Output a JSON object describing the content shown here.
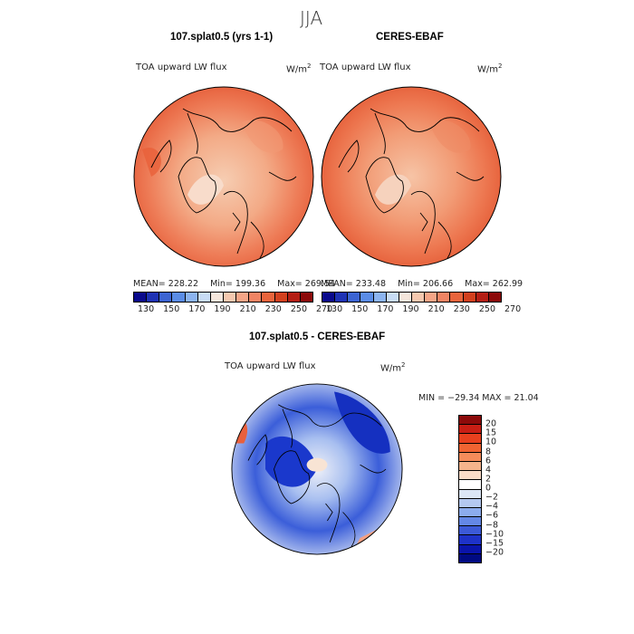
{
  "title": "JJA",
  "panels": [
    {
      "title": "107.splat0.5 (yrs 1-1)",
      "variable": "TOA upward LW flux",
      "units": "W/m",
      "units_sup": "2",
      "stats": {
        "mean": "MEAN= 228.22",
        "min": "Min= 199.36",
        "max": "Max= 269.54"
      },
      "colorbar": {
        "colors": [
          "#0a0a8c",
          "#1e32b4",
          "#3c64d2",
          "#5a8ce6",
          "#8cb4f0",
          "#c8dcf5",
          "#f5e6dc",
          "#f5c8af",
          "#f5a587",
          "#f08464",
          "#e8643c",
          "#d2401e",
          "#b41e14",
          "#8c0a0a"
        ],
        "labels": [
          "130",
          "150",
          "170",
          "190",
          "210",
          "230",
          "250",
          "270"
        ]
      }
    },
    {
      "title": "CERES-EBAF",
      "variable": "TOA upward LW flux",
      "units": "W/m",
      "units_sup": "2",
      "stats": {
        "mean": "MEAN= 233.48",
        "min": "Min= 206.66",
        "max": "Max= 262.99"
      },
      "colorbar": {
        "colors": [
          "#0a0a8c",
          "#1e32b4",
          "#3c64d2",
          "#5a8ce6",
          "#8cb4f0",
          "#c8dcf5",
          "#f5e6dc",
          "#f5c8af",
          "#f5a587",
          "#f08464",
          "#e8643c",
          "#d2401e",
          "#b41e14",
          "#8c0a0a"
        ],
        "labels": [
          "130",
          "150",
          "170",
          "190",
          "210",
          "230",
          "250",
          "270"
        ]
      }
    }
  ],
  "diff": {
    "title": "107.splat0.5 - CERES-EBAF",
    "variable": "TOA upward LW flux",
    "units": "W/m",
    "units_sup": "2",
    "minmax": "MIN = −29.34 MAX =  21.04",
    "colorbar": {
      "colors": [
        "#8c0a0a",
        "#c81e14",
        "#e8401e",
        "#f06432",
        "#f58c5a",
        "#f5b48c",
        "#fadcc8",
        "#ffffff",
        "#dce6f5",
        "#b4c8f0",
        "#8cacee",
        "#6488e6",
        "#3c5ad7",
        "#1e32c8",
        "#0a14aa",
        "#000a82"
      ],
      "labels": [
        "20",
        "15",
        "10",
        "8",
        "6",
        "4",
        "2",
        "0",
        "−2",
        "−4",
        "−6",
        "−8",
        "−10",
        "−15",
        "−20"
      ]
    }
  },
  "map_colors": {
    "ocean_dark": "#e85f3c",
    "ocean_mid": "#f07a55",
    "land_light": "#f5c0a0",
    "land_pale": "#f8d8c4",
    "diff_blue_dark": "#0f2ec8",
    "diff_blue": "#3d63dc",
    "diff_blue_light": "#9fb8ee",
    "diff_white": "#f2f2f8",
    "diff_red": "#f08060"
  }
}
